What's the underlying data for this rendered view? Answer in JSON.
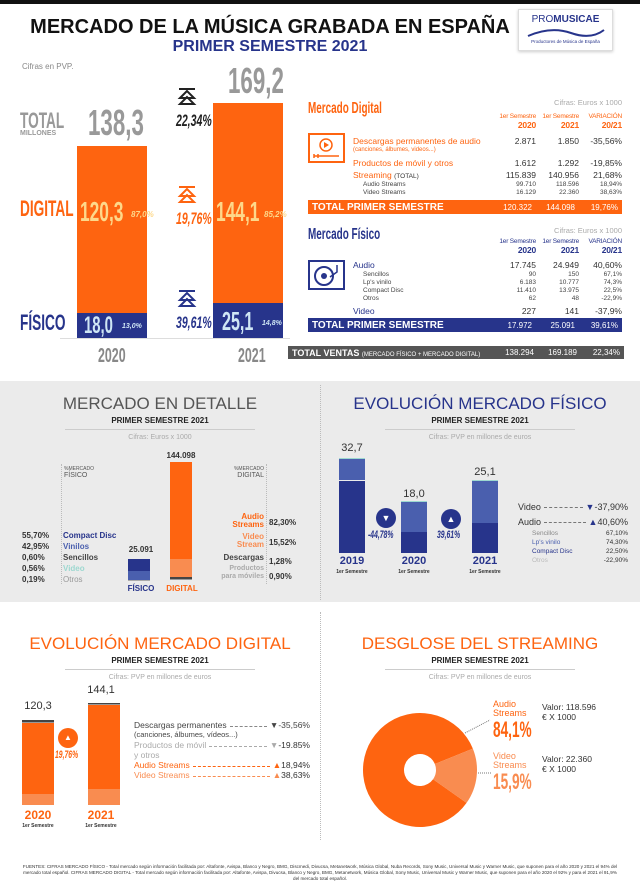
{
  "header": {
    "title": "MERCADO DE LA MÚSICA GRABADA EN ESPAÑA",
    "subtitle": "PRIMER SEMESTRE 2021",
    "note": "Cifras en PVP.",
    "logo": {
      "text_a": "PRO",
      "text_b": "MUSICAE",
      "tagline": "Productores de Música de España"
    }
  },
  "main": {
    "labels": {
      "total": "TOTAL",
      "millones": "MILLONES",
      "digital": "DIGITAL",
      "fisico": "FÍSICO"
    },
    "years": [
      "2020",
      "2021"
    ],
    "totals": [
      "138,3",
      "169,2"
    ],
    "digital": [
      "120,3",
      "144,1"
    ],
    "digital_pct": [
      "87,0%",
      "85,2%"
    ],
    "fisico": [
      "18,0",
      "25,1"
    ],
    "fisico_pct": [
      "13,0%",
      "14,8%"
    ],
    "variation": {
      "total": "22,34%",
      "digital": "19,76%",
      "fisico": "39,61%"
    }
  },
  "digital_table": {
    "title": "Mercado Digital",
    "units": "Cifras: Euros x 1000",
    "headers": [
      {
        "a": "1er Semestre",
        "b": "2020"
      },
      {
        "a": "1er Semestre",
        "b": "2021"
      },
      {
        "a": "VARIACIÓN",
        "b": "20/21"
      }
    ],
    "rows": [
      {
        "label": "Descargas permanentes de audio",
        "note": "(canciones, álbumes, videos...)",
        "v": [
          "2.871",
          "1.850",
          "-35,56%"
        ]
      },
      {
        "label": "Productos de móvil y otros",
        "v": [
          "1.612",
          "1.292",
          "-19,85%"
        ]
      },
      {
        "label": "Streaming",
        "suffix": "(TOTAL)",
        "v": [
          "115.839",
          "140.956",
          "21,68%"
        ]
      }
    ],
    "subrows": [
      {
        "label": "Audio Streams",
        "v": [
          "99.710",
          "118.596",
          "18,94%"
        ]
      },
      {
        "label": "Video Streams",
        "v": [
          "16.129",
          "22.360",
          "38,63%"
        ]
      }
    ],
    "total": {
      "label": "TOTAL PRIMER SEMESTRE",
      "v": [
        "120.322",
        "144.098",
        "19,76%"
      ]
    }
  },
  "fisico_table": {
    "title": "Mercado Físico",
    "units": "Cifras: Euros x 1000",
    "headers": [
      {
        "a": "1er Semestre",
        "b": "2020"
      },
      {
        "a": "1er Semestre",
        "b": "2021"
      },
      {
        "a": "VARIACIÓN",
        "b": "20/21"
      }
    ],
    "audio": {
      "label": "Audio",
      "v": [
        "17.745",
        "24.949",
        "40,60%"
      ]
    },
    "subrows": [
      {
        "label": "Sencillos",
        "v": [
          "90",
          "150",
          "67,1%"
        ]
      },
      {
        "label": "Lp's vinilo",
        "v": [
          "6.183",
          "10.777",
          "74,3%"
        ]
      },
      {
        "label": "Compact Disc",
        "v": [
          "11.410",
          "13.975",
          "22,5%"
        ]
      },
      {
        "label": "Otros",
        "v": [
          "62",
          "48",
          "-22,9%"
        ]
      }
    ],
    "video": {
      "label": "Video",
      "v": [
        "227",
        "141",
        "-37,9%"
      ]
    },
    "total": {
      "label": "TOTAL PRIMER SEMESTRE",
      "v": [
        "17.972",
        "25.091",
        "39,61%"
      ]
    }
  },
  "total_ventas": {
    "label": "TOTAL VENTAS",
    "note": "(MERCADO FÍSICO + MERCADO DIGITAL)",
    "v": [
      "138.294",
      "169.189",
      "22,34%"
    ]
  },
  "detalle": {
    "title": "MERCADO EN DETALLE",
    "subtitle": "PRIMER SEMESTRE 2021",
    "note": "Cifras: Euros x 1000",
    "fisico_head_a": "%MERCADO",
    "fisico_head_b": "FÍSICO",
    "digital_head_a": "%MERCADO",
    "digital_head_b": "DIGITAL",
    "fisico_total": "25.091",
    "digital_total": "144.098",
    "fisico_label": "FÍSICO",
    "digital_label": "DIGITAL",
    "fisico_items": [
      {
        "pct": "55,70%",
        "label": "Compact Disc"
      },
      {
        "pct": "42,95%",
        "label": "Vinilos"
      },
      {
        "pct": "0,60%",
        "label": "Sencillos"
      },
      {
        "pct": "0,56%",
        "label": "Video"
      },
      {
        "pct": "0,19%",
        "label": "Otros"
      }
    ],
    "digital_items": [
      {
        "label": "Audio Streams",
        "pct": "82,30%"
      },
      {
        "label": "Video Stream",
        "pct": "15,52%"
      },
      {
        "label": "Descargas",
        "pct": "1,28%"
      },
      {
        "label": "Productos para móviles",
        "pct": "0,90%"
      }
    ]
  },
  "evol_fisico": {
    "title": "EVOLUCIÓN MERCADO FÍSICO",
    "subtitle": "PRIMER SEMESTRE 2021",
    "note": "Cifras: PVP en millones de euros",
    "years": [
      "2019",
      "2020",
      "2021"
    ],
    "period": "1er Semestre",
    "totals": [
      "32,7",
      "18,0",
      "25,1"
    ],
    "changes": [
      "-44,78%",
      "39,61%"
    ],
    "legend": [
      {
        "label": "Video",
        "pct": "-37,90%"
      },
      {
        "label": "Audio",
        "pct": "40,60%"
      }
    ],
    "sub": [
      {
        "label": "Sencillos",
        "pct": "67,10%"
      },
      {
        "label": "Lp's vinilo",
        "pct": "74,30%"
      },
      {
        "label": "Compact Disc",
        "pct": "22,50%"
      },
      {
        "label": "Otros",
        "pct": "-22,90%"
      }
    ]
  },
  "evol_digital": {
    "title": "EVOLUCIÓN MERCADO DIGITAL",
    "subtitle": "PRIMER SEMESTRE 2021",
    "note": "Cifras: PVP en millones de euros",
    "years": [
      "2020",
      "2021"
    ],
    "period": "1er Semestre",
    "totals": [
      "120,3",
      "144,1"
    ],
    "change": "19,76%",
    "legend": [
      {
        "label": "Descargas permanentes",
        "note": "(canciones, álbumes, vídeos...)",
        "pct": "-35,56%"
      },
      {
        "label": "Productos de móvil",
        "note": "y otros",
        "pct": "-19.85%"
      },
      {
        "label": "Audio Streams",
        "pct": "18,94%"
      },
      {
        "label": "Video Streams",
        "pct": "38,63%"
      }
    ]
  },
  "streaming": {
    "title": "DESGLOSE DEL STREAMING",
    "subtitle": "PRIMER SEMESTRE 2021",
    "note": "Cifras: PVP en millones de euros",
    "items": [
      {
        "label_a": "Audio",
        "label_b": "Streams",
        "pct": "84,1%",
        "value": "Valor: 118.596",
        "unit": "€ X 1000"
      },
      {
        "label_a": "Video",
        "label_b": "Streams",
        "pct": "15,9%",
        "value": "Valor: 22.360",
        "unit": "€ X 1000"
      }
    ]
  },
  "footer": {
    "text": "FUENTES: CIFRAS MERCADO FÍSICO - Total mercado según información facilitada por: Altafonte, Avispa, Blanco y Negro, BMG, Discmedi, Divucsa, Metanetwork, Música Global, Nuba Records, Sony Music, Universal Music y Warner Music, que suponen para el año 2020 y 2021 el 94% del mercado total español. CIFRAS MERCADO DIGITAL - Total mercado según información facilitada por: Altafonte, Avispa, Divucsa, Blanco y Negro, BMG, Metanetwork, Música Global, Sony Music, Universal Music y Warner Music, que suponen para el año 2020 el 92% y para el 2021 el 91,9% del mercado total español."
  },
  "colors": {
    "orange": "#fe6410",
    "orange_light": "#f98c50",
    "navy": "#27348b",
    "navy_light": "#4a5fae",
    "gray": "#999999",
    "dark": "#555555"
  },
  "chart_data": [
    {
      "id": "main",
      "type": "bar",
      "title": "Mercado total (millones €)",
      "categories": [
        "2020",
        "2021"
      ],
      "series": [
        {
          "name": "Físico",
          "values": [
            18.0,
            25.1
          ]
        },
        {
          "name": "Digital",
          "values": [
            120.3,
            144.1
          ]
        }
      ],
      "totals": [
        138.3,
        169.2
      ],
      "ylim": [
        0,
        170
      ]
    },
    {
      "id": "detalle",
      "type": "bar",
      "title": "Mercado en detalle 2021 (€ x 1000)",
      "categories": [
        "FÍSICO",
        "DIGITAL"
      ],
      "totals": [
        25091,
        144098
      ],
      "series": [
        {
          "name": "Otros / Productos móviles",
          "values": [
            0.19,
            0.9
          ]
        },
        {
          "name": "Sencillos+Video / Descargas",
          "values": [
            1.16,
            1.28
          ]
        },
        {
          "name": "Vinilos / Video Stream",
          "values": [
            42.95,
            15.52
          ]
        },
        {
          "name": "Compact Disc / Audio Streams",
          "values": [
            55.7,
            82.3
          ]
        }
      ],
      "unit": "% of category"
    },
    {
      "id": "evol_fisico",
      "type": "bar",
      "title": "Evolución mercado físico (millones €)",
      "categories": [
        "2019",
        "2020",
        "2021"
      ],
      "series": [
        {
          "name": "Lp's vinilo (est.)",
          "values": [
            25.0,
            7.3,
            10.3
          ]
        },
        {
          "name": "Compact Disc (est.)",
          "values": [
            7.4,
            10.5,
            14.6
          ]
        },
        {
          "name": "Video/Otros (est.)",
          "values": [
            0.3,
            0.2,
            0.2
          ]
        }
      ],
      "totals": [
        32.7,
        18.0,
        25.1
      ]
    },
    {
      "id": "evol_digital",
      "type": "bar",
      "title": "Evolución mercado digital (millones €)",
      "categories": [
        "2020",
        "2021"
      ],
      "series": [
        {
          "name": "Video Streams",
          "values": [
            16.1,
            22.4
          ]
        },
        {
          "name": "Audio Streams",
          "values": [
            99.7,
            118.6
          ]
        },
        {
          "name": "Productos de móvil",
          "values": [
            1.6,
            1.3
          ]
        },
        {
          "name": "Descargas",
          "values": [
            2.9,
            1.8
          ]
        }
      ],
      "totals": [
        120.3,
        144.1
      ]
    },
    {
      "id": "streaming",
      "type": "pie",
      "title": "Desglose del streaming",
      "labels": [
        "Audio Streams",
        "Video Streams"
      ],
      "values": [
        84.1,
        15.9
      ]
    }
  ]
}
